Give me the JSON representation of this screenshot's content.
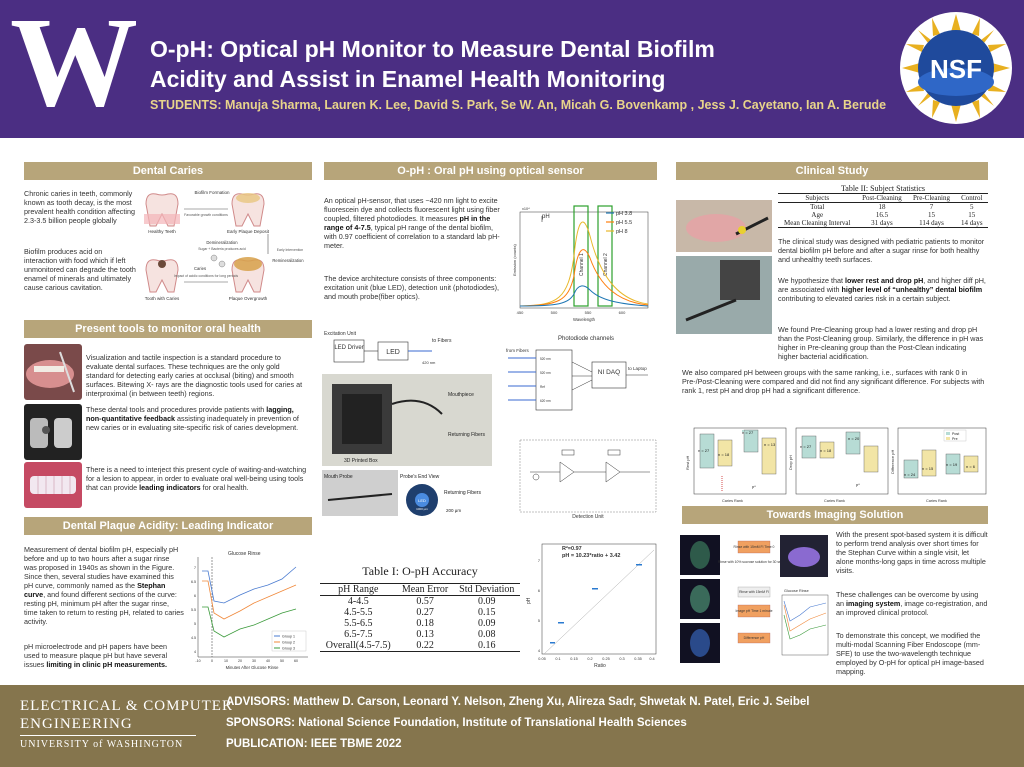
{
  "header": {
    "logo": "W",
    "title_line1": "O-pH: Optical pH Monitor to Measure Dental Biofilm",
    "title_line2": "Acidity and Assist in Enamel Health Monitoring",
    "students": "STUDENTS: Manuja Sharma, Lauren K. Lee, David S. Park, Se W. An, Micah G. Bovenkamp , Jess J. Cayetano, Ian A. Berude",
    "nsf_logo": "NSF"
  },
  "caries": {
    "heading": "Dental Caries",
    "para1": "Chronic caries in teeth, commonly known as tooth decay, is the most prevalent health condition affecting 2.3-3.5 billion people globally",
    "para2": "Biofilm produces acid on interaction with food which if left unmonitored can degrade the tooth enamel of minerals and ultimately cause carious cavitation.",
    "diagram": {
      "healthy": "Healthy Teeth",
      "early": "Early Plaque Deposit",
      "with_caries": "Tooth with Caries",
      "overgrowth": "Plaque Overgrowth",
      "biofilm_formation": "Biofilm Formation",
      "favorable": "Favorable growth conditions",
      "demineralization": "Demineralization",
      "sugar": "Sugar + Bacteria produces acid",
      "early_int": "Early Intervention",
      "remineralization": "Remineralization",
      "caries": "Caries",
      "impact": "Impact of acidic conditions for long periods"
    }
  },
  "tools": {
    "heading": "Present tools to monitor oral health",
    "para1": "Visualization and tactile inspection is a standard procedure to evaluate dental surfaces. These techniques are the only gold standard for detecting early caries at occlusal (biting) and smooth surfaces. Bitewing X- rays  are the diagnostic tools used for caries at interproximal (in between teeth) regions.",
    "para2_a": "These dental tools and procedures provide patients with ",
    "para2_b": "lagging, non-quantitative feedback",
    "para2_c": " assisting inadequately in prevention of new caries or in evaluating site-specific risk of caries development.",
    "para3_a": "There is a need to interject this present cycle of waiting-and-watching for a lesion to appear, in order to evaluate oral well-being using tools that can provide ",
    "para3_b": "leading indicators",
    "para3_c": " for oral health."
  },
  "plaque": {
    "heading": "Dental Plaque Acidity: Leading Indicator",
    "para1_a": "Measurement of dental biofilm pH, especially pH before and up to two hours after a sugar rinse was proposed in 1940s as shown in the Figure. Since then, several studies have examined this pH curve, commonly named as the ",
    "para1_b": "Stephan curve",
    "para1_c": ", and found different sections of the curve: resting pH, minimum pH after the sugar rinse, time taken to return to resting pH, related to caries activity.",
    "para2_a": "pH microelectrode and pH papers have been used to measure plaque pH but have several issues ",
    "para2_b": "limiting in clinic pH measurements.",
    "chart": {
      "title": "Glucose Rinse",
      "xlabel": "Minutes After Glucose Rinse",
      "x_ticks": [
        "-10",
        "0",
        "10",
        "20",
        "30",
        "40",
        "50",
        "60"
      ],
      "y_ticks": [
        "7",
        "6.5",
        "6",
        "5.5",
        "5",
        "4.5",
        "4"
      ],
      "legend": [
        "Group 1",
        "Group 2",
        "Group 3"
      ]
    }
  },
  "oph": {
    "heading": "O-pH : Oral pH using optical sensor",
    "para1_a": "An optical pH-sensor, that uses ~420 nm light to excite fluorescein dye and collects fluorescent light using fiber coupled, filtered photodiodes. It measures ",
    "para1_b": "pH in the range of 4-7.5",
    "para1_c": ", typical pH range of the dental biofilm, with 0.97 coefficient of correlation to a standard lab pH-meter.",
    "para2": "The device architecture consists of three components: excitation unit (blue LED), detection unit (photodiodes), and mouth probe(fiber optics).",
    "emission_chart": {
      "exp": "x10⁴",
      "ylabel": "Emission (counts)",
      "xlabel": "Wavelength",
      "y_label_short": "pH",
      "ch1": "Channel 1",
      "ch2": "Channel 2",
      "x_ticks": [
        "450",
        "500",
        "550",
        "600"
      ],
      "legend": [
        {
          "name": "pH 3.8",
          "color": "#1f77b4"
        },
        {
          "name": "pH 5.5",
          "color": "#ff7f0e"
        },
        {
          "name": "pH 8",
          "color": "#e8b82a"
        }
      ]
    },
    "excitation": {
      "label": "Excitation Unit",
      "led_driver": "LED Driver",
      "led": "LED",
      "to_fibers": "to Fibers",
      "nm": "420 nm"
    },
    "box": {
      "mouthpiece": "Mouthpiece",
      "returning": "Returning Fibers",
      "printed": "3D Printed Box"
    },
    "probe": {
      "mouth": "Mouth Probe",
      "end_view": "Probe's End View",
      "led": "LED",
      "led_um": "1000 μm",
      "returning": "Returning Fibers",
      "um": "200 μm"
    },
    "photodiode": {
      "from_fibers": "from Fibers",
      "label": "Photodiode channels",
      "ni": "NI DAQ",
      "to_laptop": "to Laptop",
      "filters": [
        "520 nm",
        "520 nm",
        "Ref",
        "620 nm"
      ]
    },
    "detection": "Detection Unit"
  },
  "table1": {
    "title": "Table I: O-pH Accuracy",
    "headers": [
      "pH Range",
      "Mean Error",
      "Std Deviation"
    ],
    "rows": [
      [
        "4-4.5",
        "0.57",
        "0.09"
      ],
      [
        "4.5-5.5",
        "0.27",
        "0.15"
      ],
      [
        "5.5-6.5",
        "0.18",
        "0.09"
      ],
      [
        "6.5-7.5",
        "0.13",
        "0.08"
      ],
      [
        "Overall(4.5-7.5)",
        "0.22",
        "0.16"
      ]
    ]
  },
  "scatter": {
    "r2": "R²=0.97",
    "eq": "pH = 10.23*ratio + 3.42",
    "ylabel": "pH",
    "xlabel": "Ratio",
    "x_ticks": [
      "0.05",
      "0.1",
      "0.15",
      "0.2",
      "0.25",
      "0.3",
      "0.35",
      "0.4"
    ],
    "y_ticks": [
      "7",
      "6",
      "5",
      "4"
    ]
  },
  "clinical": {
    "heading": "Clinical Study",
    "table_title": "Table II: Subject Statistics",
    "table_headers": [
      "Subjects",
      "Post-Cleaning",
      "Pre-Cleaning",
      "Control"
    ],
    "table_rows": [
      [
        "Total",
        "18",
        "7",
        "5"
      ],
      [
        "Age",
        "16.5",
        "15",
        "15"
      ],
      [
        "Mean Cleaning Interval",
        "31 days",
        "114 days",
        "14 days"
      ]
    ],
    "para1": "The clinical study  was designed with pediatric patients to monitor dental biofilm pH before and after a sugar rinse for both healthy and unhealthy teeth surfaces.",
    "para2_a": "We hypothesize that ",
    "para2_b": "lower rest and drop pH",
    "para2_c": ", and higher diff pH, are associated with ",
    "para2_d": "higher level of “unhealthy” dental biofilm",
    "para2_e": " contributing to elevated caries risk in a certain subject.",
    "para3": "We found Pre-Cleaning group had a lower resting and drop pH than the Post-Cleaning group. Similarly, the difference in pH was higher in Pre-cleaning group than the Post-Clean indicating higher bacterial acidification.",
    "para4": "We also compared pH between groups with the same ranking, i.e., surfaces with rank 0 in Pre-/Post-Cleaning were compared and did not find any significant difference. For subjects with rank 1, rest pH and drop pH had a significant difference.",
    "box": {
      "ylabels": [
        "Rest pH",
        "Drop pH",
        "Difference pH"
      ],
      "xlabels": [
        "Caries Rank",
        "Caries Rank",
        "Caries Rank"
      ],
      "legend": [
        "Post",
        "Pre"
      ],
      "n1": [
        "n = 27",
        "n = 18",
        "n = 27",
        "n = 13",
        "p*"
      ],
      "n2": [
        "n = 27",
        "n = 18",
        "n = 20",
        "p*"
      ],
      "n3": [
        "n = 24",
        "n = 15",
        "n = 19",
        "n = 6"
      ]
    }
  },
  "imaging": {
    "heading": "Towards Imaging Solution",
    "para1": "With the present spot-based system it is difficult to perform trend analysis over short times for the Stephan Curve within a single visit, let alone months-long gaps in time across multiple visits.",
    "para2_a": "These challenges can be overcome by using an ",
    "para2_b": "imaging system",
    "para2_c": ", image co-registration, and an improved clinical protocol.",
    "para3": "To demonstrate this concept, we modified the multi-modal Scanning Fiber Endoscope (mm-SFE) to use the two-wavelength technique employed by O-pH for optical pH image-based mapping.",
    "flow": [
      "Rinse with 15mM Fl Time 0",
      "Rinse with 10% sucrose solution for 30 seconds",
      "Rinse with 15mM Fl",
      "Image pH Time 1 minute",
      "Difference pH"
    ],
    "chart_title": "Glucose Rinse"
  },
  "footer": {
    "ece1": "ELECTRICAL & COMPUTER",
    "ece2": "ENGINEERING",
    "ece3": "UNIVERSITY of WASHINGTON",
    "advisors": "ADVISORS: Matthew D. Carson, Leonard Y. Nelson, Zheng Xu, Alireza Sadr, Shwetak N. Patel, Eric J. Seibel",
    "sponsors": "SPONSORS: National Science Foundation, Institute of Translational Health Sciences",
    "publication": "PUBLICATION:  IEEE TBME 2022"
  }
}
